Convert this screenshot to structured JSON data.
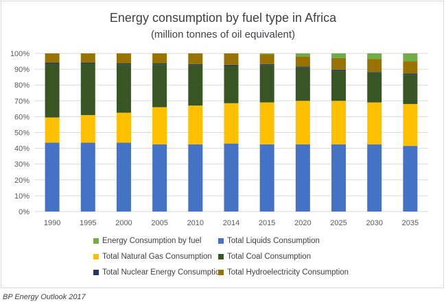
{
  "chart_data": {
    "type": "bar",
    "stacked": true,
    "title": "Energy consumption by fuel type in Africa",
    "subtitle": "(million tonnes of oil equivalent)",
    "categories": [
      "1990",
      "1995",
      "2000",
      "2005",
      "2010",
      "2014",
      "2015",
      "2020",
      "2025",
      "2030",
      "2035"
    ],
    "y_ticks": [
      "0%",
      "10%",
      "20%",
      "30%",
      "40%",
      "50%",
      "60%",
      "70%",
      "80%",
      "90%",
      "100%"
    ],
    "ylim": [
      0,
      100
    ],
    "grid": true,
    "legend_placement": "bottom",
    "series": [
      {
        "name": "Total Liquids Consumption",
        "color": "#4472c4",
        "values": [
          43.5,
          43.5,
          43.5,
          42.5,
          42.5,
          43,
          42.5,
          42.5,
          42.5,
          42.5,
          41.5
        ]
      },
      {
        "name": "Total Natural Gas Consumption",
        "color": "#ffc000",
        "values": [
          16,
          17.5,
          19,
          23.5,
          24.5,
          25.5,
          26.5,
          27.5,
          27.5,
          26.5,
          26.5
        ]
      },
      {
        "name": "Total Coal Consumption",
        "color": "#375623",
        "values": [
          34,
          32.5,
          30.5,
          27,
          25.5,
          23.5,
          23.5,
          21,
          19,
          18.5,
          18.5
        ]
      },
      {
        "name": "Total Nuclear Energy Consumption",
        "color": "#203864",
        "values": [
          0.7,
          0.7,
          0.7,
          0.7,
          0.7,
          0.7,
          0.7,
          0.7,
          0.7,
          0.7,
          0.8
        ]
      },
      {
        "name": "Total Hydroelectricity Consumption",
        "color": "#997300",
        "values": [
          5.8,
          5.8,
          6.3,
          6.3,
          6.8,
          7.3,
          6.3,
          6.3,
          7.3,
          8.3,
          7.7
        ]
      },
      {
        "name": "Energy Consumption by fuel",
        "color": "#70ad47",
        "values": [
          0,
          0,
          0,
          0,
          0,
          0,
          0.5,
          2,
          3,
          3.5,
          5
        ]
      }
    ],
    "legend_order": [
      "Energy Consumption by fuel",
      "Total Liquids Consumption",
      "Total Natural Gas Consumption",
      "Total Coal Consumption",
      "Total Nuclear Energy Consumption",
      "Total Hydroelectricity Consumption"
    ]
  },
  "source": "BP Energy Outlook 2017"
}
